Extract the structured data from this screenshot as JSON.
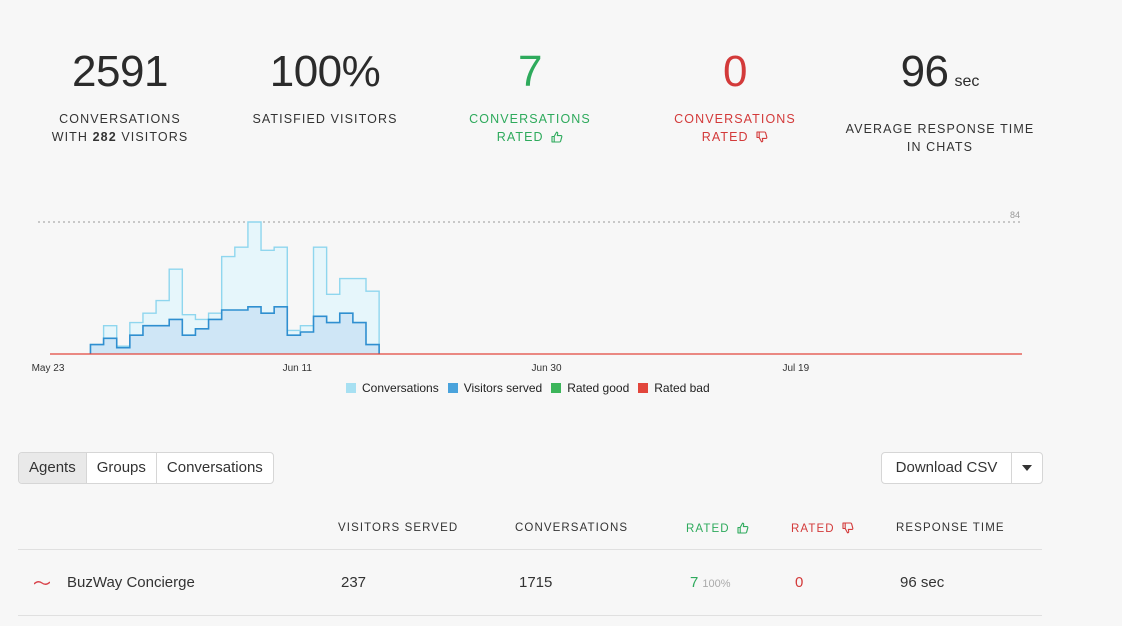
{
  "stats": {
    "conversations": {
      "value": "2591",
      "label_line1": "CONVERSATIONS",
      "label_with": "WITH",
      "visitors_count": "282",
      "label_visitors": "VISITORS"
    },
    "satisfied": {
      "value": "100%",
      "label": "SATISFIED VISITORS"
    },
    "rated_good": {
      "value": "7",
      "label_line1": "CONVERSATIONS",
      "label_line2": "RATED"
    },
    "rated_bad": {
      "value": "0",
      "label_line1": "CONVERSATIONS",
      "label_line2": "RATED"
    },
    "response": {
      "value": "96",
      "unit": "sec",
      "label_line1": "AVERAGE RESPONSE TIME",
      "label_line2": "IN CHATS"
    }
  },
  "chart_data": {
    "type": "area",
    "x_tick_labels": [
      "May 23",
      "Jun 11",
      "Jun 30",
      "Jul 19"
    ],
    "x_tick_indices": [
      0,
      19,
      38,
      57
    ],
    "ymax_label": "84",
    "ylim": [
      0,
      84
    ],
    "series": [
      {
        "name": "Conversations",
        "color": "#a7e0f2",
        "values": [
          0,
          0,
          0,
          0,
          6,
          18,
          5,
          20,
          26,
          34,
          54,
          25,
          22,
          26,
          62,
          68,
          84,
          66,
          68,
          15,
          18,
          68,
          38,
          48,
          48,
          40,
          0,
          0,
          0,
          0,
          0,
          0,
          0,
          0,
          0,
          0,
          0,
          0,
          0,
          0,
          0,
          0,
          0,
          0,
          0,
          0,
          0,
          0,
          0,
          0,
          0,
          0,
          0,
          0,
          0,
          0,
          0,
          0,
          0,
          0,
          0,
          0,
          0,
          0,
          0,
          0,
          0,
          0,
          0,
          0,
          0,
          0,
          0,
          0,
          0
        ]
      },
      {
        "name": "Visitors served",
        "color": "#4aa3dc",
        "values": [
          0,
          0,
          0,
          0,
          6,
          10,
          4,
          12,
          18,
          18,
          22,
          12,
          16,
          22,
          28,
          28,
          30,
          26,
          30,
          12,
          14,
          24,
          20,
          26,
          20,
          6,
          0,
          0,
          0,
          0,
          0,
          0,
          0,
          0,
          0,
          0,
          0,
          0,
          0,
          0,
          0,
          0,
          0,
          0,
          0,
          0,
          0,
          0,
          0,
          0,
          0,
          0,
          0,
          0,
          0,
          0,
          0,
          0,
          0,
          0,
          0,
          0,
          0,
          0,
          0,
          0,
          0,
          0,
          0,
          0,
          0,
          0,
          0,
          0,
          0
        ]
      },
      {
        "name": "Rated good",
        "color": "#3cb55a",
        "values": []
      },
      {
        "name": "Rated bad",
        "color": "#e2463c",
        "values": []
      }
    ],
    "legend_position": "bottom"
  },
  "tabs": [
    {
      "label": "Agents",
      "active": true
    },
    {
      "label": "Groups",
      "active": false
    },
    {
      "label": "Conversations",
      "active": false
    }
  ],
  "download": {
    "label": "Download CSV"
  },
  "table": {
    "headers": {
      "visitors": "VISITORS SERVED",
      "conversations": "CONVERSATIONS",
      "rated_good": "RATED",
      "rated_bad": "RATED",
      "response": "RESPONSE TIME"
    },
    "rows": [
      {
        "name": "BuzWay Concierge",
        "visitors": "237",
        "conversations": "1715",
        "rated_good": "7",
        "rated_good_pct": "100%",
        "rated_bad": "0",
        "response": "96 sec"
      }
    ]
  }
}
